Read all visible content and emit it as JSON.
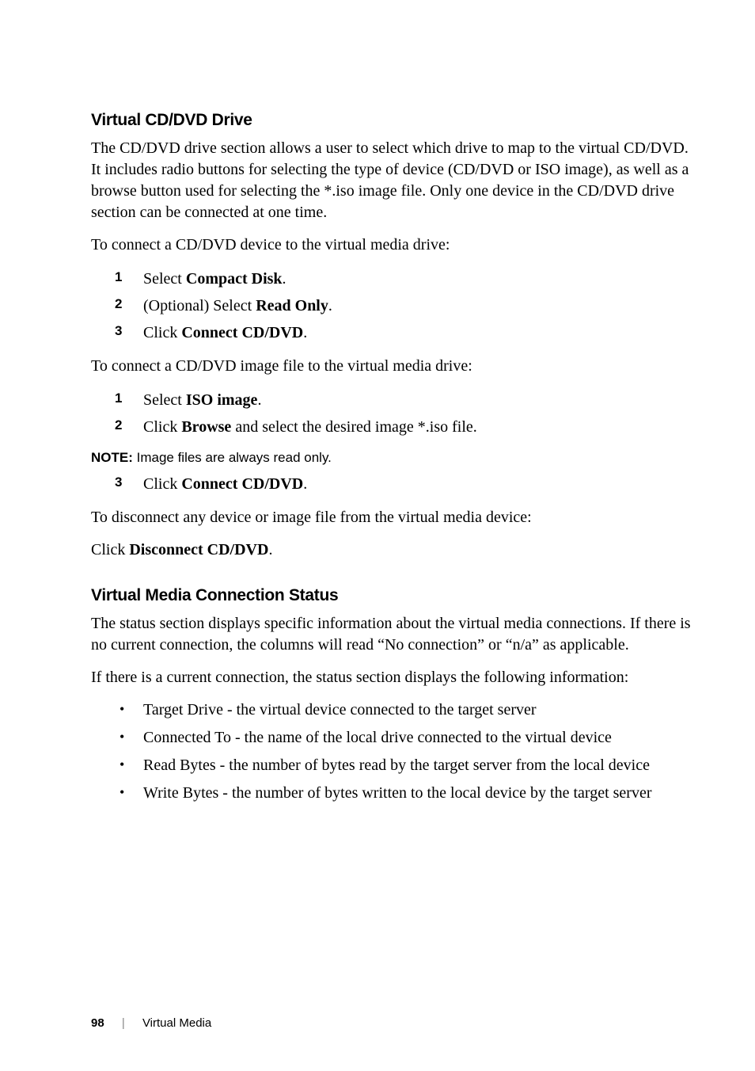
{
  "section1": {
    "heading": "Virtual CD/DVD Drive",
    "intro": "The CD/DVD drive section allows a user to select which drive to map to the virtual CD/DVD. It includes radio buttons for selecting the type of device (CD/DVD or ISO image), as well as a browse button used for selecting the *.iso image file. Only one device in the CD/DVD drive section can be connected at one time.",
    "connect_device_lead": "To connect a CD/DVD device to the virtual media drive:",
    "steps1": {
      "s1_pre": "Select ",
      "s1_bold": "Compact Disk",
      "s1_post": ".",
      "s2_pre": "(Optional) Select ",
      "s2_bold": "Read Only",
      "s2_post": ".",
      "s3_pre": "Click ",
      "s3_bold": "Connect CD/DVD",
      "s3_post": "."
    },
    "connect_image_lead": "To connect a CD/DVD image file to the virtual media drive:",
    "steps2": {
      "s1_pre": "Select ",
      "s1_bold": "ISO image",
      "s1_post": ".",
      "s2_pre": "Click ",
      "s2_bold": "Browse",
      "s2_post": " and select the desired image *.iso file."
    },
    "note_label": "NOTE: ",
    "note_text": "Image files are always read only.",
    "steps3": {
      "s3_pre": "Click ",
      "s3_bold": "Connect CD/DVD",
      "s3_post": "."
    },
    "disconnect_lead": "To disconnect any device or image file from the virtual media device:",
    "disconnect_pre": "Click ",
    "disconnect_bold": "Disconnect CD/DVD",
    "disconnect_post": "."
  },
  "section2": {
    "heading": "Virtual Media Connection Status",
    "para1": "The status section displays specific information about the virtual media connections. If there is no current connection, the columns will read “No connection” or “n/a” as applicable.",
    "para2": "If there is a current connection, the status section displays the following information:",
    "bullets": {
      "b1": "Target Drive - the virtual device connected to the target server",
      "b2": "Connected To - the name of the local drive connected to the virtual device",
      "b3": "Read Bytes - the number of bytes read by the target server from the local device",
      "b4": "Write Bytes - the number of bytes written to the local device by the target server"
    }
  },
  "footer": {
    "page": "98",
    "divider": "|",
    "chapter": "Virtual Media"
  },
  "nums": {
    "n1": "1",
    "n2": "2",
    "n3": "3"
  }
}
